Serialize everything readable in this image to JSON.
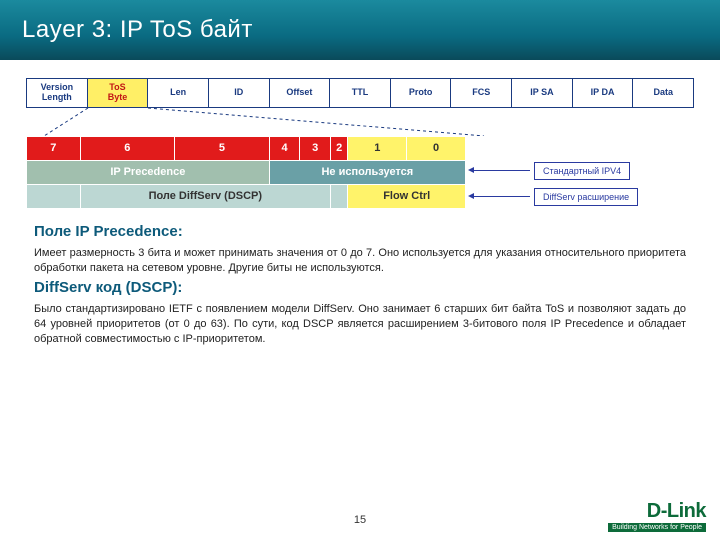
{
  "title": "Layer 3: IP ToS байт",
  "page_number": "15",
  "logo": {
    "brand": "D-Link",
    "tagline": "Building Networks for People"
  },
  "ip_header": {
    "cells": [
      "Version Length",
      "ToS Byte",
      "Len",
      "ID",
      "Offset",
      "TTL",
      "Proto",
      "FCS",
      "IP SA",
      "IP DA",
      "Data"
    ],
    "highlight_index": 1,
    "border_color": "#1a3a80",
    "highlight_bg": "#ffef66",
    "highlight_fg": "#c21515"
  },
  "bits_table": {
    "cell_colors": {
      "red": "#e11b1b",
      "yellow": "#fff36a",
      "prec_bg": "#a1bfae",
      "unused_bg": "#6aa0a6",
      "ds_bg": "#bcd7d3"
    },
    "bit_numbers": [
      "7",
      "6",
      "5",
      "4",
      "3",
      "2",
      "1",
      "0"
    ],
    "bit_number_styles": [
      "red",
      "red",
      "red",
      "red",
      "red",
      "red",
      "yellow",
      "yellow"
    ],
    "row2": {
      "precedence_label": "IP Precedence",
      "unused_label": "Не используется"
    },
    "row3": {
      "dscp_label": "Поле DiffServ (DSCP)",
      "flow_label": "Flow Ctrl"
    }
  },
  "legend": {
    "ipv4": "Стандартный IPV4",
    "diffserv": "DiffServ расширение",
    "box_border": "#2a3aa0"
  },
  "sections": {
    "ip_prec": {
      "title": "Поле IP Precedence:",
      "body": "Имеет размерность 3 бита и может принимать значения от 0 до 7.  Оно используется для указания относительного приоритета обработки пакета на сетевом уровне. Другие биты не используются."
    },
    "dscp": {
      "title": "DiffServ код (DSCP):",
      "body": "Было стандартизировано IETF с появлением модели DiffServ. Оно занимает 6 старших бит байта ToS и позволяют задать до 64 уровней приоритетов (от 0 до 63). По сути, код DSCP является расширением 3-битового поля IP Precedence и обладает обратной совместимостью с IP-приоритетом."
    }
  }
}
